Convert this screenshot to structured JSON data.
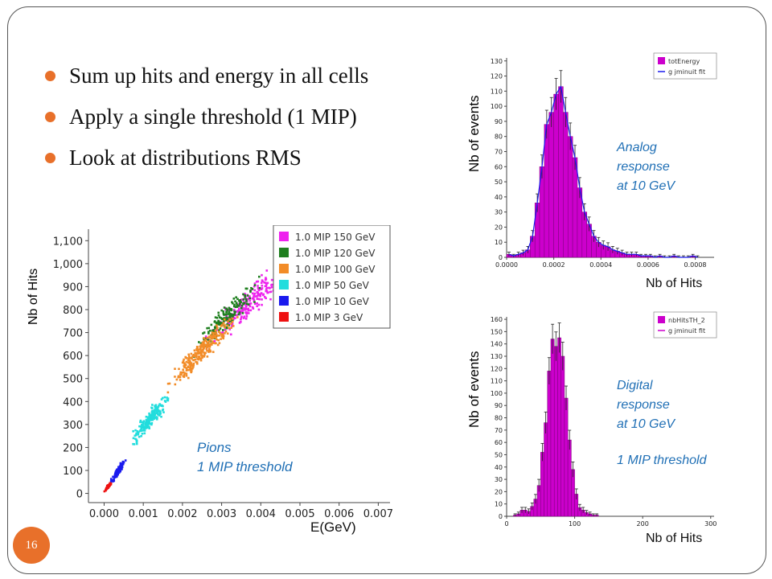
{
  "slide": {
    "bullets": [
      "Sum up hits and energy in all cells",
      "Apply a single threshold (1 MIP)",
      "Look at distributions RMS"
    ],
    "page_number": "16",
    "bullet_color": "#e8702a"
  },
  "annotations": {
    "scatter_note": [
      "Pions",
      "1 MIP threshold"
    ],
    "analog_note": [
      "Analog",
      "response",
      "at 10 GeV"
    ],
    "digital_note": [
      "Digital",
      "response",
      "at 10 GeV"
    ],
    "digital_threshold": "1 MIP threshold",
    "annotation_color": "#1f6fb5"
  },
  "chart_data": [
    {
      "id": "scatter",
      "type": "scatter",
      "xlabel": "E(GeV)",
      "ylabel": "Nb of Hits",
      "xlim": [
        -0.0004,
        0.0073
      ],
      "ylim": [
        -40,
        1150
      ],
      "xticks": [
        "0.000",
        "0.001",
        "0.002",
        "0.003",
        "0.004",
        "0.005",
        "0.006",
        "0.007"
      ],
      "xtick_values": [
        0,
        0.001,
        0.002,
        0.003,
        0.004,
        0.005,
        0.006,
        0.007
      ],
      "yticks": [
        "0",
        "100",
        "200",
        "300",
        "400",
        "500",
        "600",
        "700",
        "800",
        "900",
        "1,000",
        "1,100"
      ],
      "ytick_values": [
        0,
        100,
        200,
        300,
        400,
        500,
        600,
        700,
        800,
        900,
        1000,
        1100
      ],
      "legend_position": "top-right",
      "series": [
        {
          "name": "1.0 MIP 150 GeV",
          "color": "#ee22ee",
          "center": [
            0.0037,
            830
          ],
          "spread": [
            0.0006,
            90
          ]
        },
        {
          "name": "1.0 MIP 120 GeV",
          "color": "#1f7f1f",
          "center": [
            0.0031,
            760
          ],
          "spread": [
            0.0005,
            80
          ]
        },
        {
          "name": "1.0 MIP 100 GeV",
          "color": "#f28c28",
          "center": [
            0.0025,
            620
          ],
          "spread": [
            0.0005,
            80
          ]
        },
        {
          "name": "1.0 MIP 50 GeV",
          "color": "#22dddd",
          "center": [
            0.0012,
            330
          ],
          "spread": [
            0.0003,
            55
          ]
        },
        {
          "name": "1.0 MIP 10 GeV",
          "color": "#1a1aee",
          "center": [
            0.00035,
            95
          ],
          "spread": [
            0.0001,
            25
          ]
        },
        {
          "name": "1.0 MIP 3 GeV",
          "color": "#ee1111",
          "center": [
            0.0001,
            30
          ],
          "spread": [
            5e-05,
            10
          ]
        }
      ]
    },
    {
      "id": "analog",
      "type": "bar",
      "ylabel": "Nb of events",
      "xlabel": "Nb of Hits",
      "xlim": [
        0,
        0.00088
      ],
      "ylim": [
        0,
        132
      ],
      "xticks": [
        "0.0000",
        "0.0002",
        "0.0004",
        "0.0006",
        "0.0008"
      ],
      "xtick_values": [
        0,
        0.0002,
        0.0004,
        0.0006,
        0.0008
      ],
      "yticks": [
        "0",
        "10",
        "20",
        "30",
        "40",
        "50",
        "60",
        "70",
        "80",
        "90",
        "100",
        "110",
        "120",
        "130"
      ],
      "ytick_values": [
        0,
        10,
        20,
        30,
        40,
        50,
        60,
        70,
        80,
        90,
        100,
        110,
        120,
        130
      ],
      "bin_width": 2e-05,
      "x": [
        1e-05,
        3e-05,
        5e-05,
        7e-05,
        9e-05,
        0.00011,
        0.00013,
        0.00015,
        0.00017,
        0.00019,
        0.00021,
        0.00023,
        0.00025,
        0.00027,
        0.00029,
        0.00031,
        0.00033,
        0.00035,
        0.00037,
        0.00039,
        0.00041,
        0.00043,
        0.00045,
        0.00047,
        0.00049,
        0.00051,
        0.00053,
        0.00055,
        0.00057,
        0.00059,
        0.00061,
        0.00063,
        0.00065,
        0.00067,
        0.00069,
        0.00071,
        0.00073,
        0.00075,
        0.00077,
        0.00079,
        0.00081
      ],
      "values": [
        2,
        1,
        2,
        3,
        5,
        14,
        36,
        60,
        88,
        96,
        108,
        113,
        96,
        80,
        66,
        46,
        30,
        22,
        14,
        10,
        8,
        7,
        5,
        4,
        3,
        2,
        2,
        2,
        1,
        1,
        1,
        0,
        1,
        0,
        0,
        1,
        0,
        0,
        0,
        1,
        0
      ],
      "legend": [
        "totEnergy",
        "g jminuit fit"
      ],
      "legend_colors": [
        "#cc00cc",
        "#1a1aee"
      ],
      "fit_color": "#1a1aee",
      "bar_color": "#cc00cc"
    },
    {
      "id": "digital",
      "type": "bar",
      "ylabel": "Nb of events",
      "xlabel": "Nb of Hits",
      "xlim": [
        0,
        305
      ],
      "ylim": [
        0,
        162
      ],
      "xticks": [
        "0",
        "100",
        "200",
        "300"
      ],
      "xtick_values": [
        0,
        100,
        200,
        300
      ],
      "yticks": [
        "0",
        "10",
        "20",
        "30",
        "40",
        "50",
        "60",
        "70",
        "80",
        "90",
        "100",
        "110",
        "120",
        "130",
        "140",
        "150",
        "160"
      ],
      "ytick_values": [
        0,
        10,
        20,
        30,
        40,
        50,
        60,
        70,
        80,
        90,
        100,
        110,
        120,
        130,
        140,
        150,
        160
      ],
      "bin_width": 5,
      "x": [
        12.5,
        17.5,
        22.5,
        27.5,
        32.5,
        37.5,
        42.5,
        47.5,
        52.5,
        57.5,
        62.5,
        67.5,
        72.5,
        77.5,
        82.5,
        87.5,
        92.5,
        97.5,
        102.5,
        107.5,
        112.5,
        117.5,
        122.5,
        127.5,
        132.5
      ],
      "values": [
        1,
        2,
        5,
        5,
        4,
        8,
        14,
        25,
        52,
        76,
        118,
        144,
        138,
        145,
        130,
        96,
        62,
        38,
        18,
        7,
        5,
        3,
        2,
        1,
        1
      ],
      "legend": [
        "nbHitsTH_2",
        "g jminuit fit"
      ],
      "legend_colors": [
        "#cc00cc",
        "#cc00cc"
      ],
      "bar_color": "#cc00cc"
    }
  ]
}
